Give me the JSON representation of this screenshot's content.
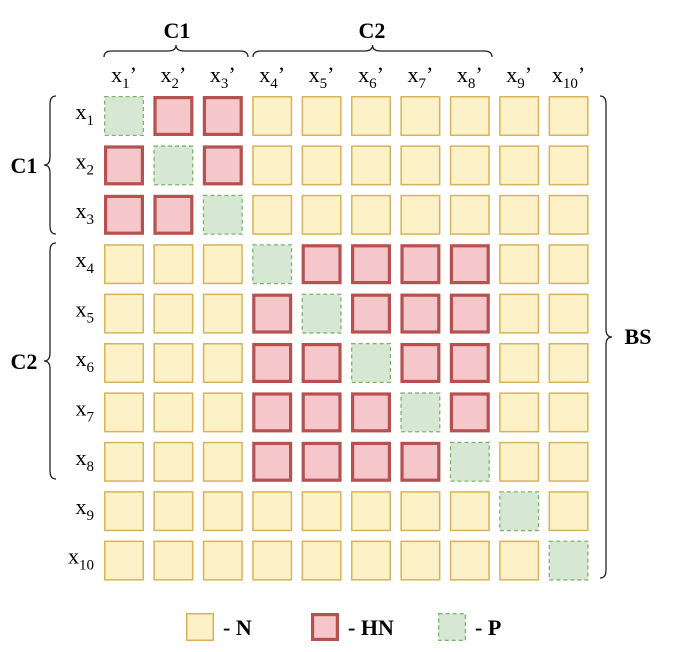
{
  "top_groups": [
    "C1",
    "C2"
  ],
  "left_groups": [
    "C1",
    "C2"
  ],
  "right_group": "BS",
  "columns": [
    {
      "base": "x",
      "sub": "1",
      "mark": "’"
    },
    {
      "base": "x",
      "sub": "2",
      "mark": "’"
    },
    {
      "base": "x",
      "sub": "3",
      "mark": "’"
    },
    {
      "base": "x",
      "sub": "4",
      "mark": "’"
    },
    {
      "base": "x",
      "sub": "5",
      "mark": "’"
    },
    {
      "base": "x",
      "sub": "6",
      "mark": "’"
    },
    {
      "base": "x",
      "sub": "7",
      "mark": "’"
    },
    {
      "base": "x",
      "sub": "8",
      "mark": "’"
    },
    {
      "base": "x",
      "sub": "9",
      "mark": "’"
    },
    {
      "base": "x",
      "sub": "10",
      "mark": "’"
    }
  ],
  "rows": [
    {
      "base": "x",
      "sub": "1"
    },
    {
      "base": "x",
      "sub": "2"
    },
    {
      "base": "x",
      "sub": "3"
    },
    {
      "base": "x",
      "sub": "4"
    },
    {
      "base": "x",
      "sub": "5"
    },
    {
      "base": "x",
      "sub": "6"
    },
    {
      "base": "x",
      "sub": "7"
    },
    {
      "base": "x",
      "sub": "8"
    },
    {
      "base": "x",
      "sub": "9"
    },
    {
      "base": "x",
      "sub": "10"
    }
  ],
  "grid": [
    [
      "P",
      "HN",
      "HN",
      "N",
      "N",
      "N",
      "N",
      "N",
      "N",
      "N"
    ],
    [
      "HN",
      "P",
      "HN",
      "N",
      "N",
      "N",
      "N",
      "N",
      "N",
      "N"
    ],
    [
      "HN",
      "HN",
      "P",
      "N",
      "N",
      "N",
      "N",
      "N",
      "N",
      "N"
    ],
    [
      "N",
      "N",
      "N",
      "P",
      "HN",
      "HN",
      "HN",
      "HN",
      "N",
      "N"
    ],
    [
      "N",
      "N",
      "N",
      "HN",
      "P",
      "HN",
      "HN",
      "HN",
      "N",
      "N"
    ],
    [
      "N",
      "N",
      "N",
      "HN",
      "HN",
      "P",
      "HN",
      "HN",
      "N",
      "N"
    ],
    [
      "N",
      "N",
      "N",
      "HN",
      "HN",
      "HN",
      "P",
      "HN",
      "N",
      "N"
    ],
    [
      "N",
      "N",
      "N",
      "HN",
      "HN",
      "HN",
      "HN",
      "P",
      "N",
      "N"
    ],
    [
      "N",
      "N",
      "N",
      "N",
      "N",
      "N",
      "N",
      "N",
      "P",
      "N"
    ],
    [
      "N",
      "N",
      "N",
      "N",
      "N",
      "N",
      "N",
      "N",
      "N",
      "P"
    ]
  ],
  "legend": [
    {
      "key": "N",
      "label": "- N"
    },
    {
      "key": "HN",
      "label": "- HN"
    },
    {
      "key": "P",
      "label": "- P"
    }
  ]
}
